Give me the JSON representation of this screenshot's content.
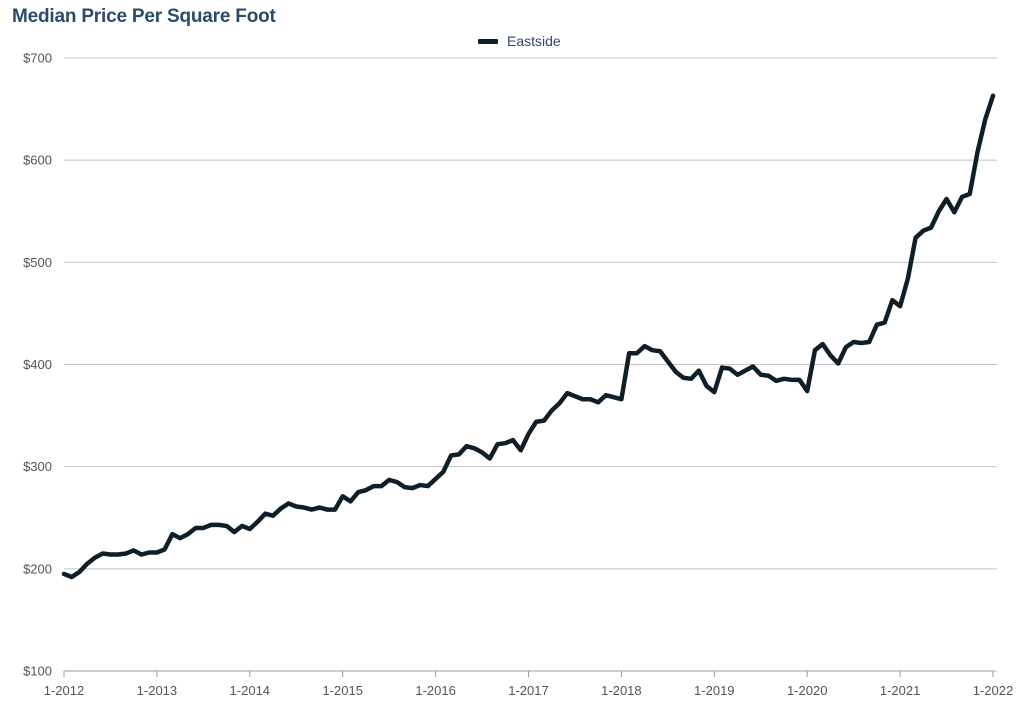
{
  "chart_data": {
    "type": "line",
    "title": "Median Price Per Square Foot",
    "legend": {
      "placement": "top-center",
      "entries": [
        "Eastside"
      ]
    },
    "line_color": "#0f1f2a",
    "title_color": "#2c4a6b",
    "x_tick_labels": [
      "1-2012",
      "1-2013",
      "1-2014",
      "1-2015",
      "1-2016",
      "1-2017",
      "1-2018",
      "1-2019",
      "1-2020",
      "1-2021",
      "1-2022"
    ],
    "y_tick_labels": [
      "$100",
      "$200",
      "$300",
      "$400",
      "$500",
      "$600",
      "$700"
    ],
    "xlim": [
      "2012-01",
      "2022-01"
    ],
    "ylim": [
      100,
      700
    ],
    "grid": "horizontal",
    "series": [
      {
        "name": "Eastside",
        "x": [
          "2012-01",
          "2012-02",
          "2012-03",
          "2012-04",
          "2012-05",
          "2012-06",
          "2012-07",
          "2012-08",
          "2012-09",
          "2012-10",
          "2012-11",
          "2012-12",
          "2013-01",
          "2013-02",
          "2013-03",
          "2013-04",
          "2013-05",
          "2013-06",
          "2013-07",
          "2013-08",
          "2013-09",
          "2013-10",
          "2013-11",
          "2013-12",
          "2014-01",
          "2014-02",
          "2014-03",
          "2014-04",
          "2014-05",
          "2014-06",
          "2014-07",
          "2014-08",
          "2014-09",
          "2014-10",
          "2014-11",
          "2014-12",
          "2015-01",
          "2015-02",
          "2015-03",
          "2015-04",
          "2015-05",
          "2015-06",
          "2015-07",
          "2015-08",
          "2015-09",
          "2015-10",
          "2015-11",
          "2015-12",
          "2016-01",
          "2016-02",
          "2016-03",
          "2016-04",
          "2016-05",
          "2016-06",
          "2016-07",
          "2016-08",
          "2016-09",
          "2016-10",
          "2016-11",
          "2016-12",
          "2017-01",
          "2017-02",
          "2017-03",
          "2017-04",
          "2017-05",
          "2017-06",
          "2017-07",
          "2017-08",
          "2017-09",
          "2017-10",
          "2017-11",
          "2017-12",
          "2018-01",
          "2018-02",
          "2018-03",
          "2018-04",
          "2018-05",
          "2018-06",
          "2018-07",
          "2018-08",
          "2018-09",
          "2018-10",
          "2018-11",
          "2018-12",
          "2019-01",
          "2019-02",
          "2019-03",
          "2019-04",
          "2019-05",
          "2019-06",
          "2019-07",
          "2019-08",
          "2019-09",
          "2019-10",
          "2019-11",
          "2019-12",
          "2020-01",
          "2020-02",
          "2020-03",
          "2020-04",
          "2020-05",
          "2020-06",
          "2020-07",
          "2020-08",
          "2020-09",
          "2020-10",
          "2020-11",
          "2020-12",
          "2021-01",
          "2021-02",
          "2021-03",
          "2021-04",
          "2021-05",
          "2021-06",
          "2021-07",
          "2021-08",
          "2021-09",
          "2021-10",
          "2021-11",
          "2021-12",
          "2022-01"
        ],
        "values": [
          195,
          192,
          197,
          205,
          211,
          215,
          214,
          214,
          215,
          218,
          214,
          216,
          216,
          219,
          234,
          230,
          234,
          240,
          240,
          243,
          243,
          242,
          236,
          242,
          239,
          246,
          254,
          252,
          259,
          264,
          261,
          260,
          258,
          260,
          258,
          258,
          271,
          266,
          275,
          277,
          281,
          281,
          287,
          285,
          280,
          279,
          282,
          281,
          288,
          295,
          311,
          312,
          320,
          318,
          314,
          308,
          322,
          323,
          326,
          316,
          332,
          344,
          345,
          355,
          362,
          372,
          369,
          366,
          366,
          363,
          370,
          368,
          366,
          411,
          411,
          418,
          414,
          413,
          403,
          393,
          387,
          386,
          394,
          379,
          373,
          397,
          396,
          390,
          394,
          398,
          390,
          389,
          384,
          386,
          385,
          385,
          374,
          414,
          420,
          409,
          401,
          417,
          422,
          421,
          422,
          439,
          441,
          463,
          457,
          484,
          524,
          531,
          534,
          550,
          562,
          549,
          564,
          567,
          608,
          640,
          663
        ]
      }
    ]
  }
}
